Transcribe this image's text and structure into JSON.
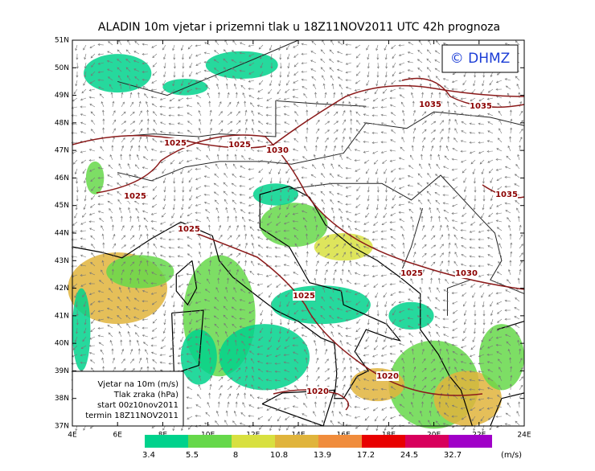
{
  "title": "ALADIN 10m vjetar i prizemni tlak u 18Z11NOV2011 UTC 42h prognoza",
  "copyright": "© DHMZ",
  "lat_labels": [
    "51N",
    "50N",
    "49N",
    "48N",
    "47N",
    "46N",
    "45N",
    "44N",
    "43N",
    "42N",
    "41N",
    "40N",
    "39N",
    "38N",
    "37N"
  ],
  "lon_labels": [
    "4E",
    "6E",
    "8E",
    "10E",
    "12E",
    "14E",
    "16E",
    "18E",
    "20E",
    "22E",
    "24E"
  ],
  "isobar_labels": [
    "1025",
    "1025",
    "1030",
    "1035",
    "1035",
    "1025",
    "1035",
    "1025",
    "1025",
    "1030",
    "1025",
    "1020",
    "1020"
  ],
  "info_box": [
    "Vjetar na 10m (m/s)",
    "Tlak zraka (hPa)",
    "start 00z10nov2011",
    "termin 18Z11NOV2011"
  ],
  "colorbar": {
    "thresholds": [
      3.4,
      5.5,
      8,
      10.8,
      13.9,
      17.2,
      24.5,
      32.7
    ],
    "colors": [
      "#00d28c",
      "#66d84a",
      "#d8e040",
      "#e0b43c",
      "#f08c3c",
      "#e80000",
      "#d8005c",
      "#a000c8"
    ],
    "unit": "(m/s)"
  }
}
